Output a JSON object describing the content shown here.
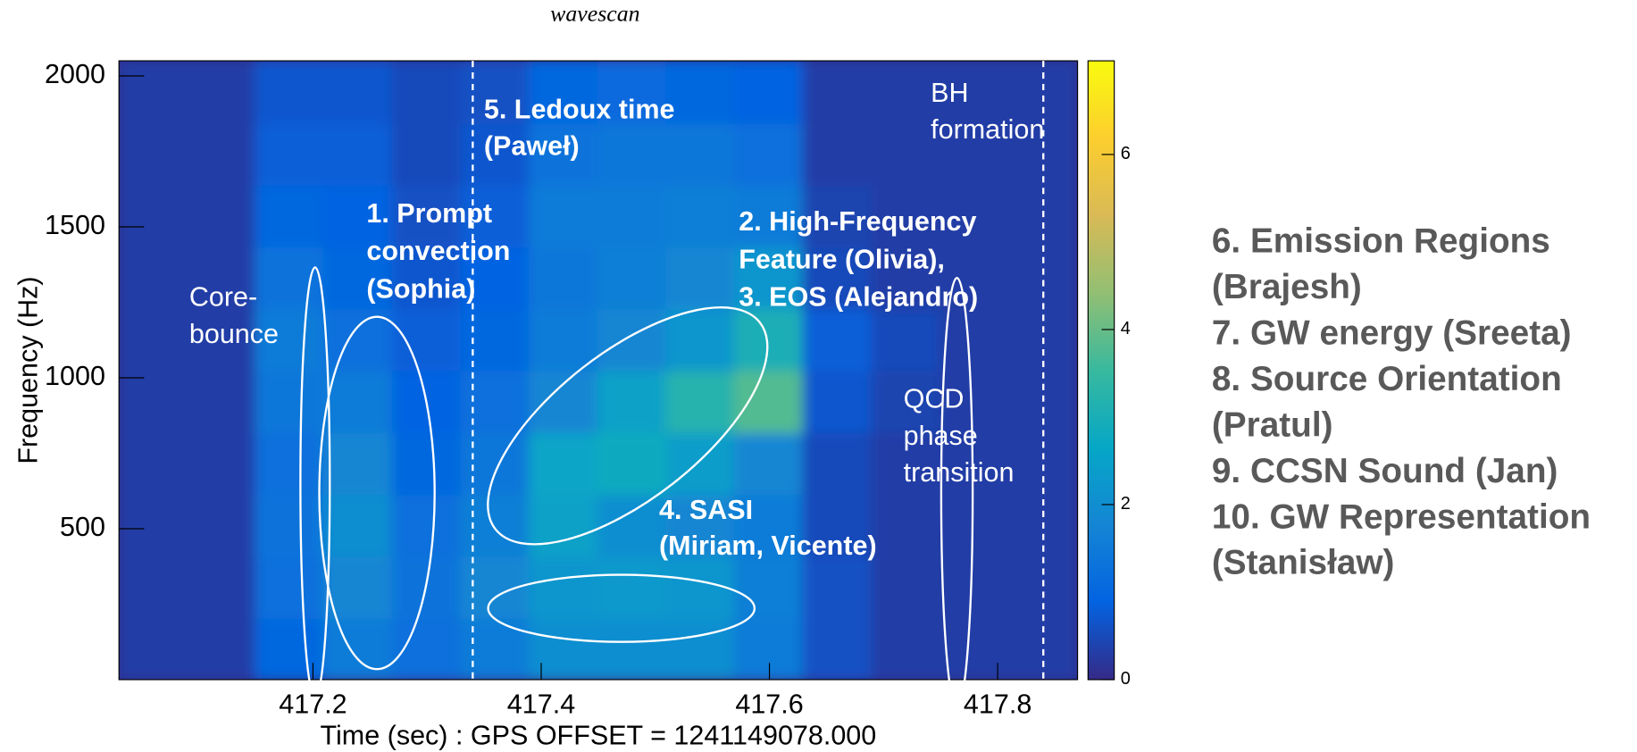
{
  "chart_data": {
    "type": "heatmap",
    "title": "wavescan",
    "x_label": "Time (sec) : GPS OFFSET = 1241149078.000",
    "y_label": "Frequency (Hz)",
    "xlim": [
      417.03,
      417.87
    ],
    "ylim": [
      0,
      2050
    ],
    "xticks": [
      417.2,
      417.4,
      417.6,
      417.8
    ],
    "yticks": [
      500,
      1000,
      1500,
      2000
    ],
    "zlim": [
      0,
      7.07
    ],
    "zticks": [
      0,
      2,
      4,
      6
    ],
    "colormap": [
      "#352a87",
      "#0363e1",
      "#1485d4",
      "#06a7c6",
      "#38b99e",
      "#92bf73",
      "#d9ba56",
      "#fcce2e",
      "#f9fb0e"
    ],
    "x_bins": [
      417.03,
      417.09,
      417.15,
      417.21,
      417.27,
      417.33,
      417.39,
      417.45,
      417.51,
      417.57,
      417.63,
      417.69,
      417.75,
      417.81,
      417.87
    ],
    "y_bins": [
      0,
      205,
      410,
      615,
      820,
      1025,
      1230,
      1435,
      1640,
      1845,
      2050
    ],
    "z": [
      [
        0.3,
        0.3,
        1.0,
        1.5,
        1.2,
        1.5,
        2.0,
        2.0,
        2.0,
        1.5,
        0.6,
        0.3,
        0.3,
        0.3
      ],
      [
        0.3,
        0.3,
        1.2,
        1.8,
        1.3,
        1.8,
        2.2,
        2.3,
        2.2,
        1.6,
        0.6,
        0.3,
        0.3,
        0.3
      ],
      [
        0.3,
        0.3,
        1.3,
        2.0,
        1.2,
        1.6,
        2.5,
        2.0,
        1.8,
        1.5,
        0.5,
        0.3,
        0.3,
        0.3
      ],
      [
        0.3,
        0.3,
        1.2,
        1.8,
        1.0,
        1.4,
        2.6,
        2.8,
        2.4,
        1.8,
        0.5,
        0.3,
        0.3,
        0.3
      ],
      [
        0.3,
        0.3,
        1.4,
        1.5,
        0.9,
        1.2,
        1.8,
        2.5,
        3.2,
        3.8,
        0.7,
        0.4,
        0.3,
        0.3
      ],
      [
        0.3,
        0.3,
        1.5,
        1.2,
        0.8,
        1.0,
        1.5,
        1.8,
        2.2,
        3.0,
        0.8,
        0.5,
        0.3,
        0.3
      ],
      [
        0.3,
        0.3,
        1.3,
        1.0,
        0.7,
        0.9,
        1.4,
        1.6,
        1.8,
        2.2,
        0.5,
        0.3,
        0.3,
        0.3
      ],
      [
        0.3,
        0.3,
        1.0,
        0.9,
        0.6,
        0.8,
        1.5,
        1.5,
        1.6,
        1.5,
        0.4,
        0.3,
        0.3,
        0.3
      ],
      [
        0.3,
        0.3,
        0.8,
        0.8,
        0.5,
        0.7,
        1.3,
        1.4,
        1.4,
        1.2,
        0.3,
        0.3,
        0.3,
        0.3
      ],
      [
        0.3,
        0.3,
        0.7,
        0.7,
        0.5,
        0.6,
        1.0,
        1.1,
        1.0,
        0.9,
        0.3,
        0.3,
        0.3,
        0.3
      ]
    ],
    "vlines": [
      417.34,
      417.84
    ],
    "annotations": [
      {
        "lines": [
          "Core-",
          "bounce"
        ]
      },
      {
        "lines": [
          "1. Prompt",
          "convection",
          "(Sophia)"
        ]
      },
      {
        "lines": [
          "5. Ledoux time",
          "(Paweł)"
        ]
      },
      {
        "lines": [
          "2. High-Frequency",
          "Feature (Olivia),",
          "3. EOS (Alejandro)"
        ]
      },
      {
        "lines": [
          "BH",
          "formation"
        ]
      },
      {
        "lines": [
          "QCD",
          "phase",
          "transition"
        ]
      },
      {
        "lines": [
          "4. SASI",
          "(Miriam, Vicente)"
        ]
      }
    ],
    "side_notes": [
      "6. Emission Regions",
      "(Brajesh)",
      "7. GW energy (Sreeta)",
      "8. Source Orientation",
      "(Pratul)",
      "9. CCSN Sound (Jan)",
      "10. GW Representation",
      "(Stanisław)"
    ]
  }
}
